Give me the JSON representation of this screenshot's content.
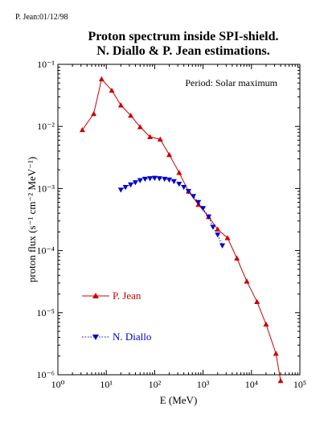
{
  "header_note": "P. Jean:01/12/98",
  "chart_data": {
    "type": "line",
    "title": "Proton spectrum inside SPI-shield.",
    "subtitle": "N. Diallo & P. Jean estimations.",
    "xlabel": "E (MeV)",
    "ylabel": "proton flux (s⁻¹ cm⁻² MeV⁻¹)",
    "annotation": "Period: Solar maximum",
    "xscale": "log",
    "yscale": "log",
    "xlim": [
      1,
      100000
    ],
    "ylim": [
      1e-06,
      0.1
    ],
    "x_tick_labels": [
      "10⁰",
      "10¹",
      "10²",
      "10³",
      "10⁴",
      "10⁵"
    ],
    "y_tick_labels": [
      "10⁻⁶",
      "10⁻⁵",
      "10⁻⁴",
      "10⁻³",
      "10⁻²",
      "10⁻¹"
    ],
    "grid": false,
    "legend_position": "bottom-left",
    "series": [
      {
        "name": "P. Jean",
        "color": "#cc0000",
        "marker": "triangle-up",
        "line": "solid",
        "x": [
          3.2,
          5.5,
          8,
          13,
          20,
          32,
          50,
          80,
          130,
          200,
          320,
          500,
          800,
          1300,
          2000,
          3200,
          5000,
          8000,
          13000,
          20000,
          32000,
          40000
        ],
        "y": [
          0.0088,
          0.016,
          0.058,
          0.038,
          0.022,
          0.015,
          0.0098,
          0.0068,
          0.0062,
          0.0035,
          0.0018,
          0.0009,
          0.00055,
          0.00035,
          0.00022,
          0.00016,
          7.5e-05,
          3.2e-05,
          1.5e-05,
          6.5e-06,
          2.2e-06,
          8e-07
        ]
      },
      {
        "name": "N. Diallo",
        "color": "#0000cc",
        "marker": "triangle-down",
        "line": "dotted",
        "x": [
          20,
          25,
          32,
          40,
          50,
          63,
          80,
          100,
          125,
          160,
          200,
          250,
          320,
          400,
          500,
          630,
          800,
          1000,
          1300,
          1600,
          2000,
          2500
        ],
        "y": [
          0.00095,
          0.00105,
          0.00115,
          0.00125,
          0.00135,
          0.00142,
          0.00145,
          0.00147,
          0.00145,
          0.00142,
          0.00138,
          0.0013,
          0.00118,
          0.00105,
          0.0009,
          0.00075,
          0.0006,
          0.00048,
          0.00035,
          0.00024,
          0.00018,
          0.00012
        ]
      }
    ]
  }
}
